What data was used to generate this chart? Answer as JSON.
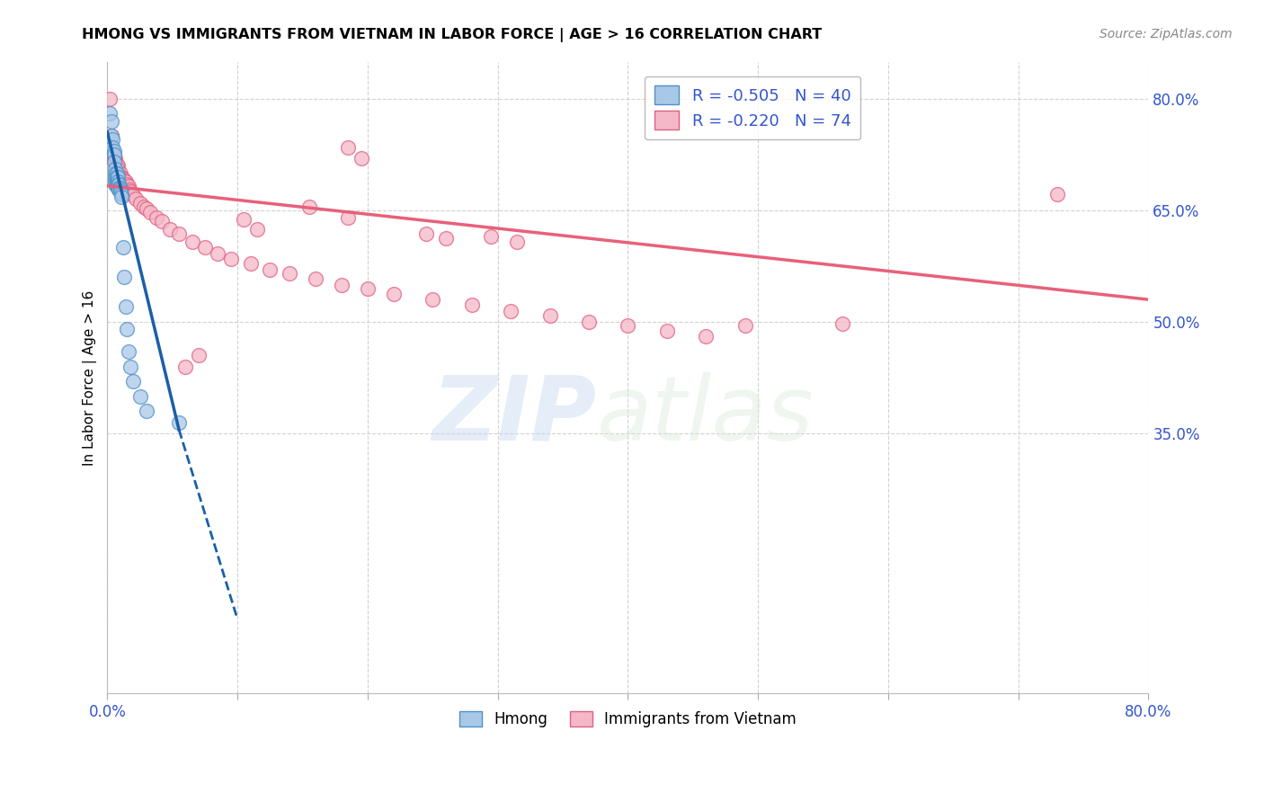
{
  "title": "HMONG VS IMMIGRANTS FROM VIETNAM IN LABOR FORCE | AGE > 16 CORRELATION CHART",
  "source": "Source: ZipAtlas.com",
  "ylabel": "In Labor Force | Age > 16",
  "xlim": [
    0.0,
    0.8
  ],
  "ylim": [
    0.0,
    0.85
  ],
  "ytick_positions": [
    0.35,
    0.5,
    0.65,
    0.8
  ],
  "legend_labels": [
    "R = -0.505   N = 40",
    "R = -0.220   N = 74"
  ],
  "legend_bottom_labels": [
    "Hmong",
    "Immigrants from Vietnam"
  ],
  "hmong_fill_color": "#a8c8e8",
  "vietnam_fill_color": "#f5b8c8",
  "hmong_edge_color": "#5090c8",
  "vietnam_edge_color": "#e06080",
  "hmong_line_color": "#1a5fa8",
  "vietnam_line_color": "#e8607a",
  "label_color": "#3355cc",
  "hmong_x": [
    0.002,
    0.003,
    0.003,
    0.004,
    0.004,
    0.005,
    0.005,
    0.005,
    0.006,
    0.006,
    0.006,
    0.006,
    0.006,
    0.007,
    0.007,
    0.007,
    0.007,
    0.007,
    0.008,
    0.008,
    0.008,
    0.008,
    0.009,
    0.009,
    0.009,
    0.01,
    0.01,
    0.01,
    0.011,
    0.011,
    0.012,
    0.013,
    0.014,
    0.015,
    0.016,
    0.018,
    0.02,
    0.025,
    0.03,
    0.055
  ],
  "hmong_y": [
    0.78,
    0.77,
    0.75,
    0.745,
    0.735,
    0.73,
    0.725,
    0.715,
    0.705,
    0.7,
    0.695,
    0.69,
    0.685,
    0.7,
    0.695,
    0.688,
    0.685,
    0.682,
    0.695,
    0.688,
    0.685,
    0.68,
    0.685,
    0.68,
    0.678,
    0.68,
    0.678,
    0.675,
    0.672,
    0.668,
    0.6,
    0.56,
    0.52,
    0.49,
    0.46,
    0.44,
    0.42,
    0.4,
    0.38,
    0.365
  ],
  "vietnam_x": [
    0.002,
    0.003,
    0.004,
    0.005,
    0.005,
    0.006,
    0.006,
    0.007,
    0.007,
    0.008,
    0.008,
    0.008,
    0.009,
    0.009,
    0.01,
    0.01,
    0.01,
    0.011,
    0.012,
    0.012,
    0.012,
    0.013,
    0.013,
    0.014,
    0.015,
    0.015,
    0.016,
    0.017,
    0.018,
    0.019,
    0.02,
    0.022,
    0.025,
    0.028,
    0.03,
    0.033,
    0.038,
    0.042,
    0.048,
    0.055,
    0.065,
    0.075,
    0.085,
    0.095,
    0.11,
    0.125,
    0.14,
    0.16,
    0.18,
    0.2,
    0.22,
    0.25,
    0.28,
    0.31,
    0.34,
    0.37,
    0.4,
    0.43,
    0.46,
    0.49,
    0.105,
    0.115,
    0.245,
    0.26,
    0.185,
    0.295,
    0.315,
    0.185,
    0.195,
    0.565,
    0.73,
    0.155,
    0.06,
    0.07
  ],
  "vietnam_y": [
    0.8,
    0.75,
    0.73,
    0.725,
    0.72,
    0.72,
    0.715,
    0.712,
    0.71,
    0.71,
    0.705,
    0.7,
    0.7,
    0.698,
    0.7,
    0.695,
    0.69,
    0.695,
    0.692,
    0.688,
    0.685,
    0.69,
    0.685,
    0.688,
    0.685,
    0.68,
    0.682,
    0.678,
    0.675,
    0.672,
    0.67,
    0.665,
    0.66,
    0.655,
    0.652,
    0.648,
    0.64,
    0.635,
    0.625,
    0.618,
    0.608,
    0.6,
    0.592,
    0.585,
    0.578,
    0.57,
    0.565,
    0.558,
    0.55,
    0.545,
    0.538,
    0.53,
    0.523,
    0.515,
    0.508,
    0.5,
    0.495,
    0.488,
    0.48,
    0.495,
    0.638,
    0.625,
    0.618,
    0.612,
    0.64,
    0.615,
    0.608,
    0.735,
    0.72,
    0.498,
    0.672,
    0.655,
    0.44,
    0.455
  ],
  "hmong_line_start_x": 0.0,
  "hmong_line_start_y": 0.755,
  "hmong_line_solid_end_x": 0.055,
  "hmong_line_solid_end_y": 0.355,
  "hmong_line_dashed_end_x": 0.1,
  "hmong_line_dashed_end_y": 0.1,
  "vietnam_line_start_x": 0.0,
  "vietnam_line_start_y": 0.683,
  "vietnam_line_end_x": 0.8,
  "vietnam_line_end_y": 0.53
}
